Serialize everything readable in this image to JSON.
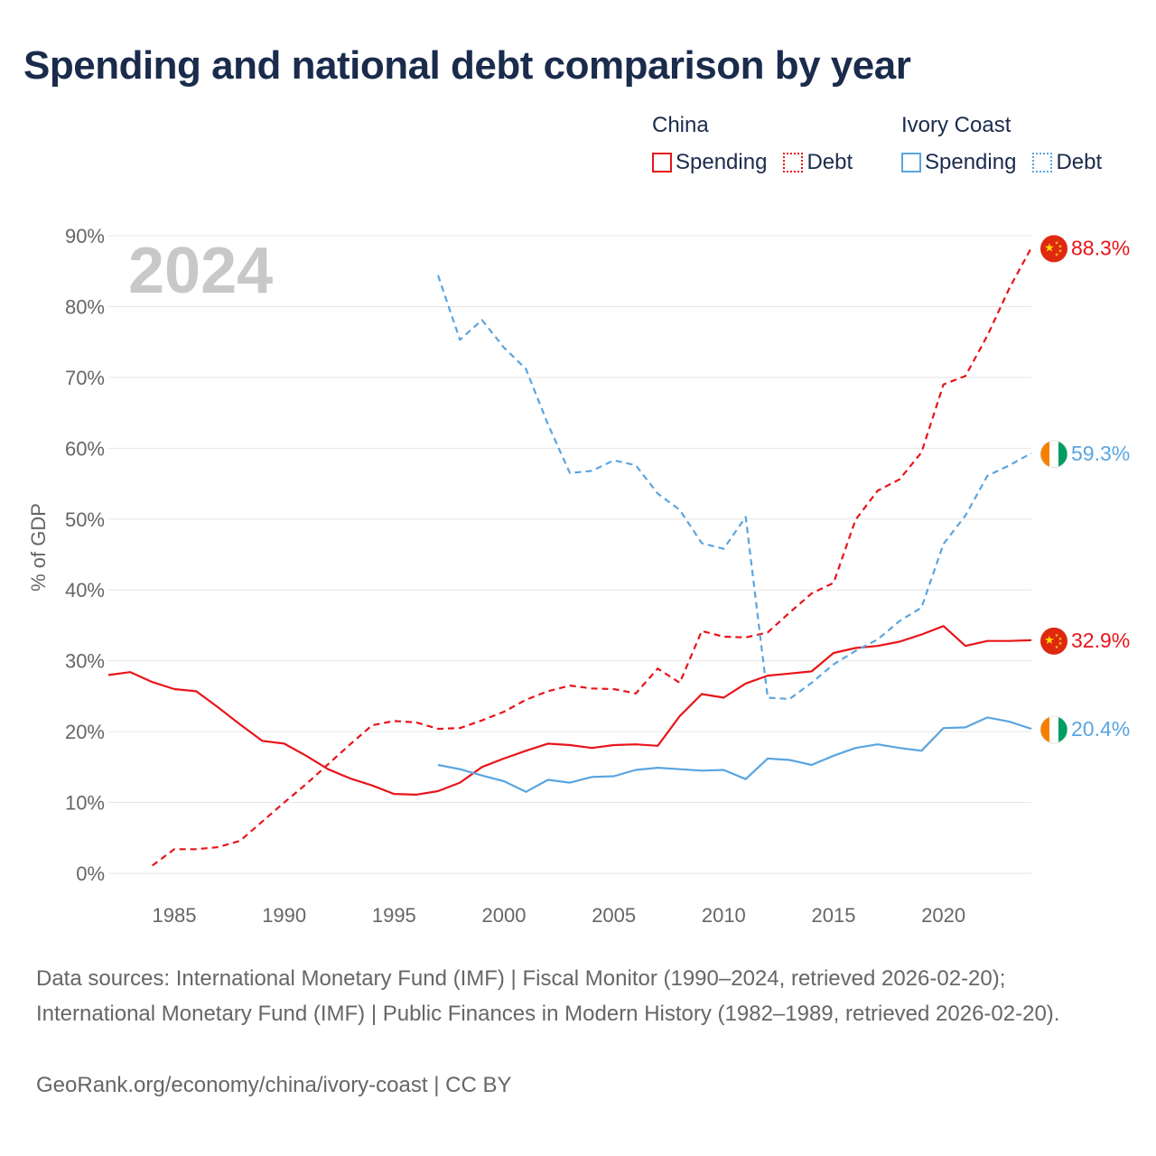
{
  "title": "Spending and national debt comparison by year",
  "legend": {
    "groups": [
      {
        "country": "China",
        "items": [
          {
            "label": "Spending",
            "style": "solid"
          },
          {
            "label": "Debt",
            "style": "dotted"
          }
        ],
        "color": "#e8141a"
      },
      {
        "country": "Ivory Coast",
        "items": [
          {
            "label": "Spending",
            "style": "solid"
          },
          {
            "label": "Debt",
            "style": "dotted"
          }
        ],
        "color": "#5aa5e0"
      }
    ]
  },
  "colors": {
    "china": "#e8141a",
    "ivory_coast": "#5aa5e0",
    "grid": "#e6e6e6",
    "axis_text": "#666666",
    "year_watermark": "#c8c8c8",
    "title": "#1a2b4c"
  },
  "chart_data": {
    "type": "line",
    "current_year": "2024",
    "ylabel": "% of GDP",
    "xlabel": "",
    "xlim": [
      1982,
      2024
    ],
    "ylim": [
      0,
      90
    ],
    "y_ticks": [
      0,
      10,
      20,
      30,
      40,
      50,
      60,
      70,
      80,
      90
    ],
    "y_tick_labels": [
      "0%",
      "10%",
      "20%",
      "30%",
      "40%",
      "50%",
      "60%",
      "70%",
      "80%",
      "90%"
    ],
    "x_ticks": [
      1985,
      1990,
      1995,
      2000,
      2005,
      2010,
      2015,
      2020
    ],
    "x_tick_labels": [
      "1985",
      "1990",
      "1995",
      "2000",
      "2005",
      "2010",
      "2015",
      "2020"
    ],
    "grid": true,
    "series": [
      {
        "name": "China Spending",
        "country": "China",
        "flag": "china-flag",
        "color": "#e8141a",
        "dash": "solid",
        "end_label": "32.9%",
        "x": [
          1982,
          1983,
          1984,
          1985,
          1986,
          1987,
          1988,
          1989,
          1990,
          1991,
          1992,
          1993,
          1994,
          1995,
          1996,
          1997,
          1998,
          1999,
          2000,
          2001,
          2002,
          2003,
          2004,
          2005,
          2006,
          2007,
          2008,
          2009,
          2010,
          2011,
          2012,
          2013,
          2014,
          2015,
          2016,
          2017,
          2018,
          2019,
          2020,
          2021,
          2022,
          2023,
          2024
        ],
        "values": [
          28.0,
          28.4,
          27.0,
          26.0,
          25.7,
          23.4,
          21.0,
          18.7,
          18.3,
          16.6,
          14.7,
          13.4,
          12.4,
          11.2,
          11.1,
          11.6,
          12.8,
          15.0,
          16.2,
          17.3,
          18.3,
          18.1,
          17.7,
          18.1,
          18.2,
          18.0,
          22.2,
          25.3,
          24.8,
          26.8,
          27.9,
          28.2,
          28.5,
          31.1,
          31.8,
          32.1,
          32.7,
          33.7,
          34.9,
          32.1,
          32.8,
          32.8,
          32.9
        ]
      },
      {
        "name": "China Debt",
        "country": "China",
        "flag": "china-flag",
        "color": "#e8141a",
        "dash": "dashed",
        "end_label": "88.3%",
        "x": [
          1984,
          1985,
          1986,
          1987,
          1988,
          1989,
          1990,
          1991,
          1992,
          1993,
          1994,
          1995,
          1996,
          1997,
          1998,
          1999,
          2000,
          2001,
          2002,
          2003,
          2004,
          2005,
          2006,
          2007,
          2008,
          2009,
          2010,
          2011,
          2012,
          2013,
          2014,
          2015,
          2016,
          2017,
          2018,
          2019,
          2020,
          2021,
          2022,
          2023,
          2024
        ],
        "values": [
          1.1,
          3.4,
          3.4,
          3.7,
          4.6,
          7.3,
          10.0,
          12.6,
          15.4,
          18.2,
          20.9,
          21.5,
          21.3,
          20.4,
          20.5,
          21.6,
          22.8,
          24.5,
          25.7,
          26.5,
          26.1,
          26.0,
          25.4,
          28.9,
          26.9,
          34.2,
          33.4,
          33.3,
          34.0,
          36.8,
          39.5,
          41.0,
          49.9,
          54.0,
          55.6,
          59.4,
          69.0,
          70.2,
          75.9,
          82.6,
          88.3
        ]
      },
      {
        "name": "Ivory Coast Spending",
        "country": "Ivory Coast",
        "flag": "ivory-coast-flag",
        "color": "#5aa5e0",
        "dash": "solid",
        "end_label": "20.4%",
        "x": [
          1997,
          1998,
          1999,
          2000,
          2001,
          2002,
          2003,
          2004,
          2005,
          2006,
          2007,
          2008,
          2009,
          2010,
          2011,
          2012,
          2013,
          2014,
          2015,
          2016,
          2017,
          2018,
          2019,
          2020,
          2021,
          2022,
          2023,
          2024
        ],
        "values": [
          15.3,
          14.7,
          13.8,
          13.0,
          11.5,
          13.2,
          12.8,
          13.6,
          13.7,
          14.6,
          14.9,
          14.7,
          14.5,
          14.6,
          13.3,
          16.2,
          16.0,
          15.3,
          16.6,
          17.7,
          18.2,
          17.7,
          17.3,
          20.5,
          20.6,
          22.0,
          21.4,
          20.4
        ]
      },
      {
        "name": "Ivory Coast Debt",
        "country": "Ivory Coast",
        "flag": "ivory-coast-flag",
        "color": "#5aa5e0",
        "dash": "dashed",
        "end_label": "59.3%",
        "x": [
          1997,
          1998,
          1999,
          2000,
          2001,
          2002,
          2003,
          2004,
          2005,
          2006,
          2007,
          2008,
          2009,
          2010,
          2011,
          2012,
          2013,
          2014,
          2015,
          2016,
          2017,
          2018,
          2019,
          2020,
          2021,
          2022,
          2023,
          2024
        ],
        "values": [
          84.4,
          75.3,
          78.1,
          74.2,
          71.2,
          63.4,
          56.5,
          56.8,
          58.3,
          57.6,
          53.6,
          51.3,
          46.6,
          45.8,
          50.3,
          24.8,
          24.6,
          26.9,
          29.5,
          31.4,
          33.0,
          35.6,
          37.5,
          46.5,
          50.5,
          56.1,
          57.6,
          59.3
        ]
      }
    ]
  },
  "footer": {
    "sources": "Data sources: International Monetary Fund (IMF) | Fiscal Monitor (1990–2024, retrieved 2026-02-20); International Monetary Fund (IMF) | Public Finances in Modern History (1982–1989, retrieved 2026-02-20).",
    "credit": "GeoRank.org/economy/china/ivory-coast | CC BY"
  }
}
